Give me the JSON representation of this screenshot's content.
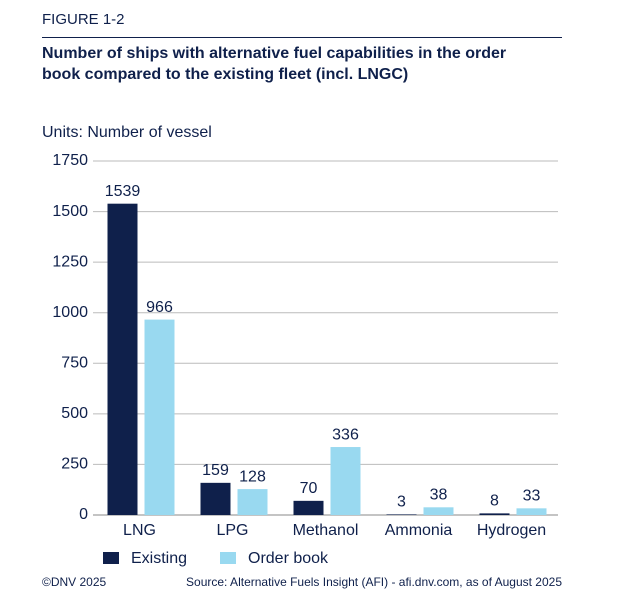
{
  "chart_data": {
    "type": "bar",
    "figure_label": "FIGURE 1-2",
    "title": "Number of ships with alternative fuel capabilities in the order book compared to the existing fleet (incl. LNGC)",
    "units_label": "Units: Number of vessel",
    "categories": [
      "LNG",
      "LPG",
      "Methanol",
      "Ammonia",
      "Hydrogen"
    ],
    "series": [
      {
        "name": "Existing",
        "color": "#0f204b",
        "values": [
          1539,
          159,
          70,
          3,
          8
        ]
      },
      {
        "name": "Order book",
        "color": "#99d9f0",
        "values": [
          966,
          128,
          336,
          38,
          33
        ]
      }
    ],
    "ylim": [
      0,
      1750
    ],
    "yticks": [
      0,
      250,
      500,
      750,
      1000,
      1250,
      1500,
      1750
    ],
    "grid": true,
    "legend": "bottom",
    "copyright": "©DNV 2025",
    "source": "Source: Alternative Fuels Insight (AFI) - afi.dnv.com, as of August 2025"
  }
}
